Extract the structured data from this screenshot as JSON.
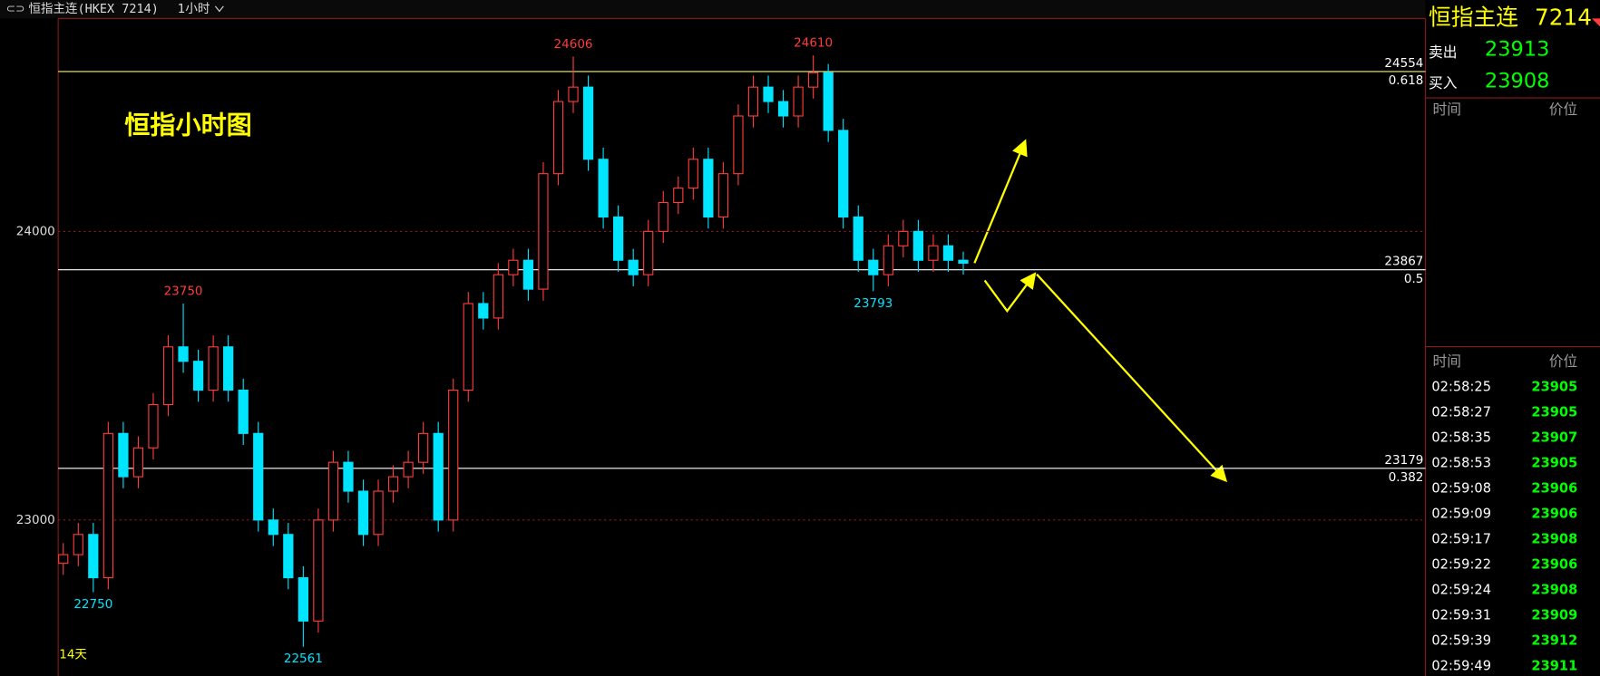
{
  "header": {
    "symbol": "恒指主连(HKEX 7214)",
    "interval": "1小时"
  },
  "chart_data": {
    "type": "candlestick",
    "title": "恒指小时图",
    "period_label": "14天",
    "open": [
      22850,
      22880,
      22950,
      22800,
      23300,
      23150,
      23250,
      23400,
      23600,
      23550,
      23450,
      23600,
      23450,
      23300,
      23000,
      22950,
      22800,
      22650,
      23000,
      23200,
      23100,
      22950,
      23100,
      23150,
      23200,
      23300,
      23000,
      23450,
      23750,
      23700,
      23850,
      23900,
      23800,
      24200,
      24450,
      24500,
      24250,
      24050,
      23900,
      23850,
      24000,
      24100,
      24150,
      24250,
      24050,
      24200,
      24400,
      24500,
      24450,
      24400,
      24500,
      24550,
      24350,
      24050,
      23900,
      23850,
      23950,
      24000,
      23900,
      23950,
      23900
    ],
    "high": [
      22920,
      22990,
      22990,
      23340,
      23340,
      23290,
      23440,
      23640,
      23750,
      23590,
      23640,
      23640,
      23490,
      23340,
      23040,
      22990,
      22840,
      23040,
      23240,
      23240,
      23140,
      23140,
      23190,
      23240,
      23340,
      23340,
      23490,
      23790,
      23790,
      23890,
      23940,
      23940,
      24240,
      24490,
      24606,
      24540,
      24290,
      24090,
      23940,
      24040,
      24140,
      24190,
      24290,
      24290,
      24240,
      24440,
      24540,
      24540,
      24490,
      24540,
      24610,
      24580,
      24390,
      24090,
      23940,
      23990,
      24040,
      24040,
      23990,
      23990,
      23930
    ],
    "low": [
      22810,
      22840,
      22750,
      22760,
      23110,
      23110,
      23210,
      23360,
      23510,
      23410,
      23410,
      23410,
      23260,
      22960,
      22910,
      22760,
      22561,
      22610,
      22960,
      23060,
      22910,
      22910,
      23060,
      23110,
      23160,
      22960,
      22960,
      23410,
      23660,
      23660,
      23810,
      23760,
      23760,
      24160,
      24410,
      24210,
      24010,
      23860,
      23810,
      23810,
      23960,
      24060,
      24110,
      24010,
      24010,
      24160,
      24360,
      24410,
      24360,
      24360,
      24460,
      24310,
      24010,
      23860,
      23793,
      23810,
      23910,
      23860,
      23860,
      23860,
      23850
    ],
    "close": [
      22880,
      22950,
      22800,
      23300,
      23150,
      23250,
      23400,
      23600,
      23550,
      23450,
      23600,
      23450,
      23300,
      23000,
      22950,
      22800,
      22650,
      23000,
      23200,
      23100,
      22950,
      23100,
      23150,
      23200,
      23300,
      23000,
      23450,
      23750,
      23700,
      23850,
      23900,
      23800,
      24200,
      24450,
      24500,
      24250,
      24050,
      23900,
      23850,
      24000,
      24100,
      24150,
      24250,
      24050,
      24200,
      24400,
      24500,
      24450,
      24400,
      24500,
      24550,
      24350,
      24050,
      23900,
      23850,
      23950,
      24000,
      23900,
      23950,
      23900,
      23890
    ],
    "up_color": "#ff3b3b",
    "down_color": "#00e5ff",
    "ylim": [
      22488,
      24731
    ],
    "yticks": [
      23000,
      24000
    ],
    "grid": true,
    "fib_levels": [
      {
        "price": 24554,
        "ratio": 0.618,
        "color": "#f0f08a"
      },
      {
        "price": 23867,
        "ratio": 0.5,
        "color": "#ffffff"
      },
      {
        "price": 23179,
        "ratio": 0.382,
        "color": "#ffffff"
      }
    ]
  },
  "quote_panel": {
    "name": "恒指主连",
    "code": "7214",
    "sell_label": "卖出",
    "sell": 23913,
    "buy_label": "买入",
    "buy": 23908,
    "time_header": "时间",
    "price_header": "价位",
    "trades": [
      [
        "02:58:25",
        23905
      ],
      [
        "02:58:27",
        23905
      ],
      [
        "02:58:35",
        23907
      ],
      [
        "02:58:53",
        23905
      ],
      [
        "02:59:08",
        23906
      ],
      [
        "02:59:09",
        23906
      ],
      [
        "02:59:17",
        23908
      ],
      [
        "02:59:22",
        23906
      ],
      [
        "02:59:24",
        23908
      ],
      [
        "02:59:31",
        23909
      ],
      [
        "02:59:39",
        23912
      ],
      [
        "02:59:49",
        23911
      ]
    ]
  }
}
